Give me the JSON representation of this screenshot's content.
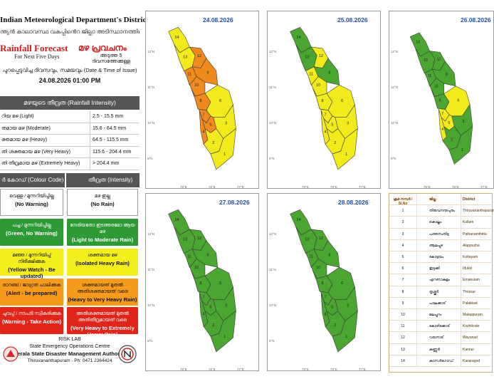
{
  "header": {
    "organization": "Indian Meteorological Department's District Wise",
    "organization_ml": "ന്ത്യൻ കാലാവസ്ഥ വകുപ്പിൻെറ ജില്ലാ അടിസ്ഥാനത്തിലുള്ള",
    "forecast_title": "Rainfall Forecast",
    "forecast_title_ml": "മഴ പ്രവചനം",
    "forecast_subtitle": "For Next Five Days",
    "forecast_subtitle_ml": "അടുത്ത 5 ദിവസത്തേക്കുള്ള",
    "issue_label": "പുറപ്പെടുവിച്ച ദിവസവും, സമയവും (Date & Time of Issue)",
    "issue_datetime": "24.08.2026  01:00 PM"
  },
  "intensity": {
    "header": "മഴയുടെ തീവ്രത (Rainfall Intensity)",
    "rows": [
      {
        "label": "റിയ മഴ (Light)",
        "range": "2.5 - 15.5 mm"
      },
      {
        "label": "തമായ മഴ (Moderate)",
        "range": "15.6 - 64.5 mm"
      },
      {
        "label": "ക്തമായ മഴ (Heavy)",
        "range": "64.5 - 115.5 mm"
      },
      {
        "label": "തി ശക്തമായ മഴ (Very Heavy)",
        "range": "115.6 - 204.4 mm"
      },
      {
        "label": "തി തീവ്രമായ മഴ (Extremely Heavy)",
        "range": "> 204.4 mm"
      }
    ]
  },
  "colour_code": {
    "header_left": "ർ കോഡ് (Colour Code)",
    "header_right": "തീവ്രത (Intensity)",
    "rows": [
      {
        "left_ml": "വെള്ള / മുന്നറിയിപ്പില്ല",
        "left_en": "(No Warning)",
        "right_ml": "മഴ ഇല്ല",
        "right_en": "(No Rain)",
        "left_color": "#ffffff",
        "right_color": "#ffffff"
      },
      {
        "left_ml": "പച്ച / മുന്നറിയിപ്പില്ല",
        "left_en": "(Green, No Warning)",
        "right_ml": "നേരിയതോ ഇടത്തരമോ ആയ മഴ",
        "right_en": "(Light to Moderate Rain)",
        "left_color": "#2e9a35",
        "right_color": "#2e9a35"
      },
      {
        "left_ml": "മഞ്ഞ / മുന്നറിയിപ്പ് നിരീക്ഷിക്കുക",
        "left_en": "(Yellow Watch - Be updated)",
        "right_ml": "ശക്തമായ മഴ",
        "right_en": "(Isolated Heavy Rain)",
        "left_color": "#f3ee1c",
        "right_color": "#f3ee1c"
      },
      {
        "left_ml": "ഓറഞ്ച് / ജാഗ്രത പാലിക്കുക",
        "left_en": "(Alert - be prepared)",
        "right_ml": "ശക്തമായത് മുതൽ അതിശക്തമായത് വരെ",
        "right_en": "(Heavy to Very Heavy Rain)",
        "left_color": "#f59a1a",
        "right_color": "#f59a1a"
      },
      {
        "left_ml": "ചുവപ്പ് / നടപടി സ്വീകരിക്കുക",
        "left_en": "(Warning - Take Action)",
        "right_ml": "അതിശക്തമായത് മുതൽ അതിതീവ്രമായത് വരെ",
        "right_en": "(Very Heavy to Extremely Heavy Rain)",
        "left_color": "#e0251b",
        "right_color": "#e0251b"
      }
    ]
  },
  "footer": {
    "risk_lab": "RISK LAB",
    "seoc": "State Emergency Operations Centre",
    "authority": "Kerala State Disaster Management Authority",
    "address": "Thiruvananthapuram - Ph: 0471 2364424"
  },
  "maps": [
    {
      "date": "24.08.2026",
      "colors": {
        "1": "yellow",
        "2": "yellow",
        "3": "yellow",
        "4": "orange",
        "5": "orange",
        "6": "yellow",
        "7": "orange",
        "8": "orange",
        "9": "orange",
        "10": "orange",
        "11": "orange",
        "12": "orange",
        "13": "yellow",
        "14": "yellow"
      }
    },
    {
      "date": "25.08.2026",
      "colors": {
        "1": "yellow",
        "2": "yellow",
        "3": "yellow",
        "4": "yellow",
        "5": "yellow",
        "6": "yellow",
        "7": "yellow",
        "8": "yellow",
        "9": "green",
        "10": "yellow",
        "11": "yellow",
        "12": "yellow",
        "13": "green",
        "14": "green"
      }
    },
    {
      "date": "26.08.2026",
      "colors": {
        "1": "green",
        "2": "green",
        "3": "green",
        "4": "yellow",
        "5": "yellow",
        "6": "yellow",
        "7": "yellow",
        "8": "green",
        "9": "green",
        "10": "green",
        "11": "green",
        "12": "green",
        "13": "green",
        "14": "green"
      }
    },
    {
      "date": "27.08.2026",
      "colors": {
        "1": "green",
        "2": "green",
        "3": "green",
        "4": "green",
        "5": "green",
        "6": "green",
        "7": "green",
        "8": "green",
        "9": "green",
        "10": "green",
        "11": "green",
        "12": "green",
        "13": "green",
        "14": "green"
      }
    },
    {
      "date": "28.08.2026",
      "colors": {
        "1": "green",
        "2": "green",
        "3": "green",
        "4": "green",
        "5": "green",
        "6": "green",
        "7": "green",
        "8": "green",
        "9": "green",
        "10": "green",
        "11": "green",
        "12": "green",
        "13": "green",
        "14": "green"
      }
    }
  ],
  "palette": {
    "green": "#4aa531",
    "yellow": "#f2ea1b",
    "orange": "#f08a1c",
    "border": "#3c3c3c"
  },
  "coord_labels": {
    "lon1": "75°E",
    "lon2": "76°E",
    "lon3": "77°E",
    "lat1": "12°N",
    "lat2": "11°N",
    "lat3": "10°N",
    "lat4": "9°N"
  },
  "districts": {
    "headers": {
      "no": "ക്രമ നമ്പർ / Sl.No",
      "ml": "ജില്ല",
      "en": "District"
    },
    "rows": [
      {
        "no": "1",
        "ml": "തിരുവനന്തപുരം",
        "en": "Thiruvananthapuram"
      },
      {
        "no": "2",
        "ml": "കൊല്ലം",
        "en": "Kollam"
      },
      {
        "no": "3",
        "ml": "പത്തനംതിട്ട",
        "en": "Pathanamthitta"
      },
      {
        "no": "4",
        "ml": "ആലപ്പുഴ",
        "en": "Alappuzha"
      },
      {
        "no": "5",
        "ml": "കോട്ടയം",
        "en": "Kottayam"
      },
      {
        "no": "6",
        "ml": "ഇടുക്കി",
        "en": "Idukki"
      },
      {
        "no": "7",
        "ml": "എറണാകുളം",
        "en": "Ernakulam"
      },
      {
        "no": "8",
        "ml": "തൃശ്ശൂർ",
        "en": "Thrissur"
      },
      {
        "no": "9",
        "ml": "പാലക്കാട്",
        "en": "Palakkad"
      },
      {
        "no": "10",
        "ml": "മലപ്പുറം",
        "en": "Malappuram"
      },
      {
        "no": "11",
        "ml": "കോഴിക്കോട്",
        "en": "Kozhikode"
      },
      {
        "no": "12",
        "ml": "വയനാട്",
        "en": "Wayanad"
      },
      {
        "no": "13",
        "ml": "കണ്ണൂർ",
        "en": "Kannur"
      },
      {
        "no": "14",
        "ml": "കാസർഗോഡ്",
        "en": "Kasaragod"
      }
    ]
  }
}
